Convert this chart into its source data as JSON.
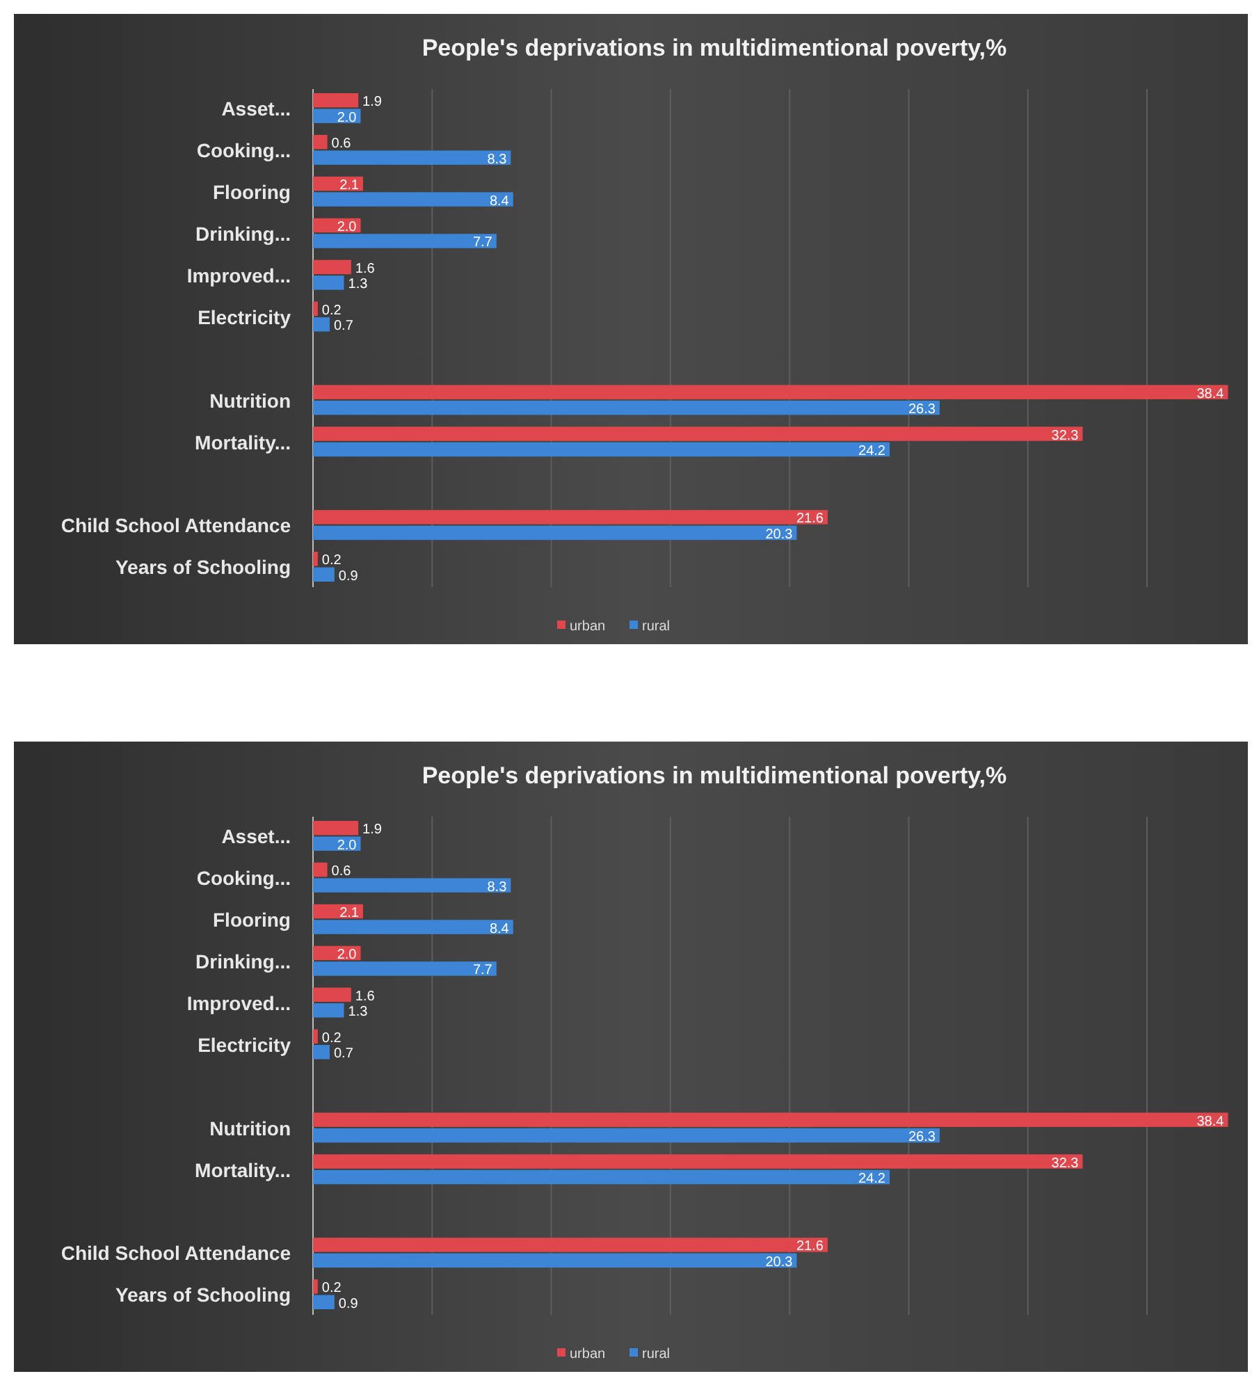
{
  "chart_data": [
    {
      "type": "bar",
      "orientation": "horizontal",
      "title": "People's deprivations in multidimentional poverty,%",
      "categories": [
        "Asset...",
        "Cooking...",
        "Flooring",
        "Drinking...",
        "Improved...",
        "Electricity",
        null,
        "Nutrition",
        "Mortality...",
        null,
        "Child School Attendance",
        "Years of Schooling"
      ],
      "series": [
        {
          "name": "urban",
          "color": "#e0474c",
          "values": [
            1.9,
            0.6,
            2.1,
            2.0,
            1.6,
            0.2,
            null,
            38.4,
            32.3,
            null,
            21.6,
            0.2
          ],
          "value_labels": [
            "1.9",
            "0.6",
            "2.1",
            "2.0",
            "1.6",
            "0.2",
            null,
            "38.4",
            "32.3",
            null,
            "21.6",
            "0.2"
          ]
        },
        {
          "name": "rural",
          "color": "#3d85d6",
          "values": [
            2.0,
            8.3,
            8.4,
            7.7,
            1.3,
            0.7,
            null,
            26.3,
            24.2,
            null,
            20.3,
            0.9
          ],
          "value_labels": [
            "2.0",
            "8.3",
            "8.4",
            "7.7",
            "1.3",
            "0.7",
            null,
            "26.3",
            "24.2",
            null,
            "20.3",
            "0.9"
          ]
        }
      ],
      "xlim": [
        0,
        39
      ],
      "xticks": [
        {
          "value": 0,
          "label": null
        },
        {
          "value": 5,
          "label": null
        },
        {
          "value": 10,
          "label": null
        },
        {
          "value": 15,
          "label": null
        },
        {
          "value": 20,
          "label": null
        },
        {
          "value": 25,
          "label": null
        },
        {
          "value": 30,
          "label": null
        },
        {
          "value": 35,
          "label": null
        }
      ],
      "tick_labels": "y",
      "grid": "x",
      "legend": "bottom"
    },
    {
      "type": "bar",
      "orientation": "horizontal",
      "title": "People's deprivations in multidimentional poverty,%",
      "categories": [
        "Asset...",
        "Cooking...",
        "Flooring",
        "Drinking...",
        "Improved...",
        "Electricity",
        null,
        "Nutrition",
        "Mortality...",
        null,
        "Child School Attendance",
        "Years of Schooling"
      ],
      "series": [
        {
          "name": "urban",
          "color": "#e0474c",
          "values": [
            1.9,
            0.6,
            2.1,
            2.0,
            1.6,
            0.2,
            null,
            38.4,
            32.3,
            null,
            21.6,
            0.2
          ],
          "value_labels": [
            "1.9",
            "0.6",
            "2.1",
            "2.0",
            "1.6",
            "0.2",
            null,
            "38.4",
            "32.3",
            null,
            "21.6",
            "0.2"
          ]
        },
        {
          "name": "rural",
          "color": "#3d85d6",
          "values": [
            2.0,
            8.3,
            8.4,
            7.7,
            1.3,
            0.7,
            null,
            26.3,
            24.2,
            null,
            20.3,
            0.9
          ],
          "value_labels": [
            "2.0",
            "8.3",
            "8.4",
            "7.7",
            "1.3",
            "0.7",
            null,
            "26.3",
            "24.2",
            null,
            "20.3",
            "0.9"
          ]
        }
      ],
      "xlim": [
        0,
        39
      ],
      "xticks": [
        {
          "value": 0,
          "label": null
        },
        {
          "value": 5,
          "label": null
        },
        {
          "value": 10,
          "label": null
        },
        {
          "value": 15,
          "label": null
        },
        {
          "value": 20,
          "label": null
        },
        {
          "value": 25,
          "label": null
        },
        {
          "value": 30,
          "label": null
        },
        {
          "value": 35,
          "label": null
        }
      ],
      "tick_labels": "y",
      "grid": "x",
      "legend": "bottom"
    }
  ]
}
